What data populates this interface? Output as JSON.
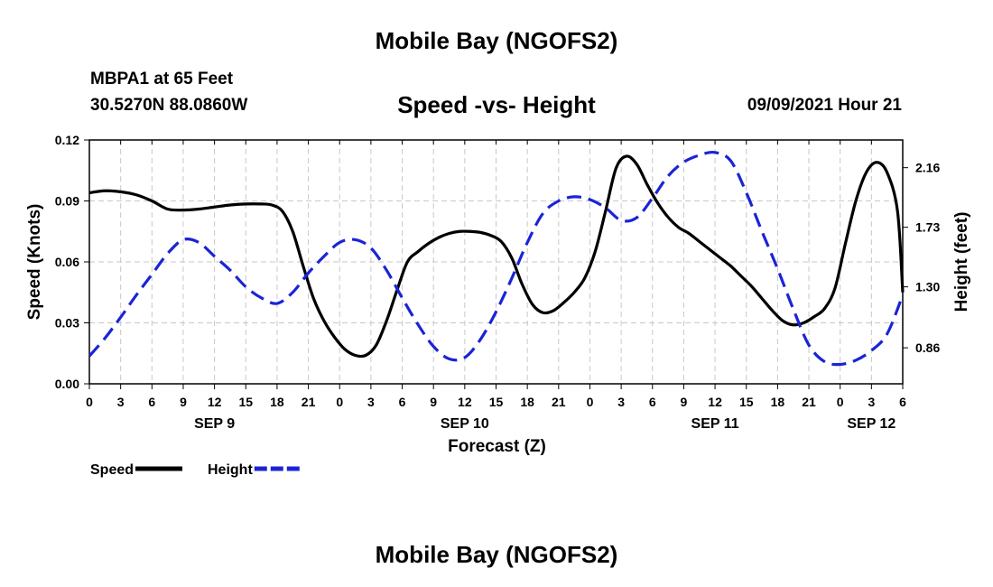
{
  "header": {
    "top_title": "Mobile Bay (NGOFS2)",
    "station": "MBPA1 at 65 Feet",
    "coords": "30.5270N  88.0860W",
    "datetime": "09/09/2021 Hour 21"
  },
  "footer": {
    "bottom_title": "Mobile Bay (NGOFS2)"
  },
  "chart_data": {
    "type": "line",
    "title": "Speed -vs- Height",
    "xlabel": "Forecast (Z)",
    "ylabel": "Speed (Knots)",
    "y2label": "Height (feet)",
    "xlim": [
      0,
      78
    ],
    "ylim": [
      0,
      0.12
    ],
    "y2lim": [
      0.6,
      2.36
    ],
    "x_ticks": [
      {
        "x": 0,
        "label": "0"
      },
      {
        "x": 3,
        "label": "3"
      },
      {
        "x": 6,
        "label": "6"
      },
      {
        "x": 9,
        "label": "9"
      },
      {
        "x": 12,
        "label": "12"
      },
      {
        "x": 15,
        "label": "15"
      },
      {
        "x": 18,
        "label": "18"
      },
      {
        "x": 21,
        "label": "21"
      },
      {
        "x": 24,
        "label": "0"
      },
      {
        "x": 27,
        "label": "3"
      },
      {
        "x": 30,
        "label": "6"
      },
      {
        "x": 33,
        "label": "9"
      },
      {
        "x": 36,
        "label": "12"
      },
      {
        "x": 39,
        "label": "15"
      },
      {
        "x": 42,
        "label": "18"
      },
      {
        "x": 45,
        "label": "21"
      },
      {
        "x": 48,
        "label": "0"
      },
      {
        "x": 51,
        "label": "3"
      },
      {
        "x": 54,
        "label": "6"
      },
      {
        "x": 57,
        "label": "9"
      },
      {
        "x": 60,
        "label": "12"
      },
      {
        "x": 63,
        "label": "15"
      },
      {
        "x": 66,
        "label": "18"
      },
      {
        "x": 69,
        "label": "21"
      },
      {
        "x": 72,
        "label": "0"
      },
      {
        "x": 75,
        "label": "3"
      },
      {
        "x": 78,
        "label": "6"
      }
    ],
    "date_labels": [
      {
        "x": 12,
        "label": "SEP 9"
      },
      {
        "x": 36,
        "label": "SEP 10"
      },
      {
        "x": 60,
        "label": "SEP 11"
      },
      {
        "x": 75,
        "label": "SEP 12"
      }
    ],
    "y_ticks": [
      {
        "v": 0,
        "label": "0.00"
      },
      {
        "v": 0.03,
        "label": "0.03"
      },
      {
        "v": 0.06,
        "label": "0.06"
      },
      {
        "v": 0.09,
        "label": "0.09"
      },
      {
        "v": 0.12,
        "label": "0.12"
      }
    ],
    "y2_ticks": [
      {
        "v": 0.86,
        "label": "0.86"
      },
      {
        "v": 1.3,
        "label": "1.30"
      },
      {
        "v": 1.73,
        "label": "1.73"
      },
      {
        "v": 2.16,
        "label": "2.16"
      }
    ],
    "grid": true,
    "legend": "bottom-left",
    "series": [
      {
        "name": "Speed",
        "axis": "left",
        "color": "#000000",
        "dash": "solid",
        "points": [
          [
            0,
            0.094
          ],
          [
            1.5,
            0.095
          ],
          [
            3,
            0.0945
          ],
          [
            4.5,
            0.093
          ],
          [
            6,
            0.09
          ],
          [
            7.5,
            0.086
          ],
          [
            9,
            0.0855
          ],
          [
            10.5,
            0.086
          ],
          [
            12,
            0.087
          ],
          [
            13.5,
            0.088
          ],
          [
            15,
            0.0885
          ],
          [
            16.5,
            0.0885
          ],
          [
            17.5,
            0.088
          ],
          [
            18.5,
            0.085
          ],
          [
            19.5,
            0.075
          ],
          [
            20.5,
            0.058
          ],
          [
            21.5,
            0.042
          ],
          [
            22.5,
            0.031
          ],
          [
            23.5,
            0.023
          ],
          [
            24.5,
            0.017
          ],
          [
            25.5,
            0.014
          ],
          [
            26.5,
            0.014
          ],
          [
            27.5,
            0.019
          ],
          [
            28.5,
            0.031
          ],
          [
            29.5,
            0.046
          ],
          [
            30.5,
            0.06
          ],
          [
            31.5,
            0.065
          ],
          [
            32.5,
            0.069
          ],
          [
            33.5,
            0.072
          ],
          [
            34.5,
            0.074
          ],
          [
            35.5,
            0.075
          ],
          [
            36.5,
            0.075
          ],
          [
            37.5,
            0.0745
          ],
          [
            38.5,
            0.073
          ],
          [
            39.5,
            0.07
          ],
          [
            40.5,
            0.062
          ],
          [
            41.5,
            0.049
          ],
          [
            42.5,
            0.039
          ],
          [
            43.5,
            0.035
          ],
          [
            44.5,
            0.036
          ],
          [
            45.5,
            0.04
          ],
          [
            46.5,
            0.045
          ],
          [
            47.5,
            0.052
          ],
          [
            48.5,
            0.065
          ],
          [
            49.5,
            0.085
          ],
          [
            50.5,
            0.106
          ],
          [
            51.5,
            0.112
          ],
          [
            52.5,
            0.108
          ],
          [
            53.5,
            0.098
          ],
          [
            54.5,
            0.089
          ],
          [
            55.5,
            0.082
          ],
          [
            56.5,
            0.077
          ],
          [
            57.5,
            0.074
          ],
          [
            58.5,
            0.07
          ],
          [
            59.5,
            0.066
          ],
          [
            60.5,
            0.062
          ],
          [
            61.5,
            0.058
          ],
          [
            62.5,
            0.053
          ],
          [
            63.5,
            0.048
          ],
          [
            64.5,
            0.042
          ],
          [
            65.5,
            0.036
          ],
          [
            66.5,
            0.031
          ],
          [
            67.5,
            0.029
          ],
          [
            68.5,
            0.03
          ],
          [
            69.5,
            0.033
          ],
          [
            70.5,
            0.037
          ],
          [
            71.5,
            0.047
          ],
          [
            72.5,
            0.069
          ],
          [
            73.5,
            0.09
          ],
          [
            74.5,
            0.104
          ],
          [
            75.5,
            0.109
          ],
          [
            76.5,
            0.104
          ],
          [
            77.5,
            0.085
          ],
          [
            78,
            0.045
          ]
        ]
      },
      {
        "name": "Height",
        "axis": "right",
        "color": "#1a24d6",
        "dash": "dashed",
        "points": [
          [
            0,
            0.8
          ],
          [
            1.5,
            0.93
          ],
          [
            3,
            1.08
          ],
          [
            4.5,
            1.24
          ],
          [
            6,
            1.39
          ],
          [
            7.5,
            1.54
          ],
          [
            9,
            1.64
          ],
          [
            10.5,
            1.62
          ],
          [
            12,
            1.52
          ],
          [
            13.5,
            1.42
          ],
          [
            15,
            1.3
          ],
          [
            16.5,
            1.22
          ],
          [
            18,
            1.18
          ],
          [
            19.5,
            1.26
          ],
          [
            21,
            1.4
          ],
          [
            22.5,
            1.52
          ],
          [
            24,
            1.62
          ],
          [
            25.5,
            1.64
          ],
          [
            27,
            1.58
          ],
          [
            28.5,
            1.42
          ],
          [
            30,
            1.22
          ],
          [
            31.5,
            1.03
          ],
          [
            33,
            0.87
          ],
          [
            34.5,
            0.78
          ],
          [
            36,
            0.79
          ],
          [
            37.5,
            0.92
          ],
          [
            39,
            1.12
          ],
          [
            40.5,
            1.36
          ],
          [
            42,
            1.62
          ],
          [
            43.5,
            1.83
          ],
          [
            45,
            1.92
          ],
          [
            46.5,
            1.95
          ],
          [
            48,
            1.93
          ],
          [
            49.5,
            1.87
          ],
          [
            51,
            1.78
          ],
          [
            52.5,
            1.8
          ],
          [
            54,
            1.94
          ],
          [
            55.5,
            2.1
          ],
          [
            57,
            2.2
          ],
          [
            58.5,
            2.25
          ],
          [
            60,
            2.27
          ],
          [
            61.5,
            2.21
          ],
          [
            63,
            1.98
          ],
          [
            64.5,
            1.7
          ],
          [
            66,
            1.43
          ],
          [
            67.5,
            1.14
          ],
          [
            69,
            0.88
          ],
          [
            70.5,
            0.76
          ],
          [
            72,
            0.74
          ],
          [
            73.5,
            0.77
          ],
          [
            75,
            0.84
          ],
          [
            76.5,
            0.96
          ],
          [
            78,
            1.24
          ]
        ]
      }
    ]
  }
}
